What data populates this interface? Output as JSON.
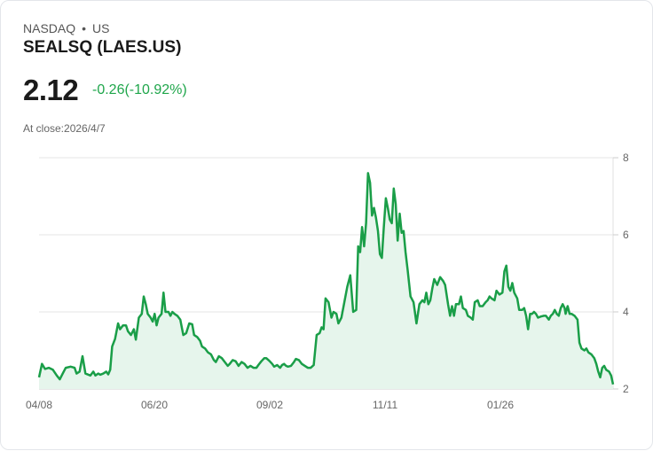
{
  "header": {
    "exchange": "NASDAQ",
    "separator": "•",
    "region": "US",
    "title": "SEALSQ (LAES.US)",
    "price": "2.12",
    "change": "-0.26(-10.92%)",
    "close_label": "At close:2026/4/7"
  },
  "colors": {
    "line": "#1a9e48",
    "fill": "#e6f5ec",
    "change": "#1fa64b"
  },
  "chart_data": {
    "type": "area",
    "title": "SEALSQ (LAES.US)",
    "xlabel": "",
    "ylabel": "",
    "ylim": [
      2,
      8
    ],
    "yticks": [
      2,
      4,
      6,
      8
    ],
    "xticks": [
      "04/08",
      "06/20",
      "09/02",
      "11/11",
      "01/26"
    ],
    "grid": true,
    "y_axis_position": "right",
    "points": [
      [
        0,
        2.3
      ],
      [
        3,
        2.65
      ],
      [
        6,
        2.52
      ],
      [
        10,
        2.55
      ],
      [
        14,
        2.5
      ],
      [
        18,
        2.35
      ],
      [
        21,
        2.25
      ],
      [
        24,
        2.4
      ],
      [
        27,
        2.55
      ],
      [
        32,
        2.58
      ],
      [
        36,
        2.55
      ],
      [
        38,
        2.4
      ],
      [
        41,
        2.45
      ],
      [
        44,
        2.85
      ],
      [
        47,
        2.4
      ],
      [
        52,
        2.35
      ],
      [
        55,
        2.45
      ],
      [
        57,
        2.35
      ],
      [
        60,
        2.4
      ],
      [
        62,
        2.37
      ],
      [
        65,
        2.4
      ],
      [
        68,
        2.45
      ],
      [
        70,
        2.38
      ],
      [
        72,
        2.5
      ],
      [
        74,
        3.1
      ],
      [
        77,
        3.3
      ],
      [
        80,
        3.7
      ],
      [
        82,
        3.55
      ],
      [
        85,
        3.65
      ],
      [
        88,
        3.65
      ],
      [
        90,
        3.5
      ],
      [
        93,
        3.4
      ],
      [
        96,
        3.55
      ],
      [
        98,
        3.28
      ],
      [
        101,
        3.85
      ],
      [
        104,
        3.95
      ],
      [
        106,
        4.4
      ],
      [
        108,
        4.2
      ],
      [
        110,
        3.95
      ],
      [
        113,
        3.85
      ],
      [
        115,
        3.75
      ],
      [
        117,
        3.95
      ],
      [
        119,
        3.65
      ],
      [
        121,
        3.85
      ],
      [
        124,
        3.95
      ],
      [
        126,
        4.5
      ],
      [
        128,
        4.0
      ],
      [
        131,
        4.0
      ],
      [
        133,
        3.9
      ],
      [
        135,
        4.0
      ],
      [
        137,
        3.95
      ],
      [
        140,
        3.9
      ],
      [
        143,
        3.8
      ],
      [
        146,
        3.4
      ],
      [
        149,
        3.45
      ],
      [
        152,
        3.7
      ],
      [
        155,
        3.68
      ],
      [
        157,
        3.4
      ],
      [
        160,
        3.35
      ],
      [
        163,
        3.25
      ],
      [
        165,
        3.1
      ],
      [
        168,
        3.05
      ],
      [
        171,
        2.95
      ],
      [
        174,
        2.9
      ],
      [
        177,
        2.75
      ],
      [
        179,
        2.7
      ],
      [
        182,
        2.85
      ],
      [
        185,
        2.8
      ],
      [
        188,
        2.7
      ],
      [
        191,
        2.6
      ],
      [
        193,
        2.65
      ],
      [
        196,
        2.75
      ],
      [
        199,
        2.72
      ],
      [
        202,
        2.6
      ],
      [
        205,
        2.7
      ],
      [
        208,
        2.65
      ],
      [
        211,
        2.55
      ],
      [
        214,
        2.6
      ],
      [
        217,
        2.55
      ],
      [
        220,
        2.55
      ],
      [
        222,
        2.62
      ],
      [
        225,
        2.72
      ],
      [
        228,
        2.8
      ],
      [
        230,
        2.8
      ],
      [
        233,
        2.73
      ],
      [
        236,
        2.65
      ],
      [
        238,
        2.58
      ],
      [
        241,
        2.62
      ],
      [
        244,
        2.55
      ],
      [
        246,
        2.62
      ],
      [
        248,
        2.65
      ],
      [
        250,
        2.6
      ],
      [
        252,
        2.58
      ],
      [
        255,
        2.6
      ],
      [
        258,
        2.7
      ],
      [
        260,
        2.78
      ],
      [
        263,
        2.75
      ],
      [
        266,
        2.65
      ],
      [
        269,
        2.6
      ],
      [
        272,
        2.55
      ],
      [
        275,
        2.55
      ],
      [
        278,
        2.62
      ],
      [
        281,
        3.4
      ],
      [
        284,
        3.45
      ],
      [
        286,
        3.6
      ],
      [
        288,
        3.55
      ],
      [
        290,
        4.35
      ],
      [
        293,
        4.25
      ],
      [
        296,
        3.85
      ],
      [
        298,
        4.0
      ],
      [
        301,
        3.95
      ],
      [
        303,
        3.7
      ],
      [
        306,
        3.85
      ],
      [
        309,
        4.25
      ],
      [
        312,
        4.65
      ],
      [
        315,
        4.95
      ],
      [
        318,
        4.0
      ],
      [
        321,
        4.05
      ],
      [
        323,
        5.7
      ],
      [
        325,
        5.55
      ],
      [
        327,
        6.2
      ],
      [
        329,
        5.7
      ],
      [
        331,
        6.3
      ],
      [
        333,
        7.6
      ],
      [
        335,
        7.35
      ],
      [
        337,
        6.5
      ],
      [
        339,
        6.7
      ],
      [
        341,
        6.45
      ],
      [
        343,
        6.1
      ],
      [
        345,
        5.5
      ],
      [
        347,
        5.4
      ],
      [
        349,
        6.2
      ],
      [
        351,
        6.95
      ],
      [
        353,
        6.7
      ],
      [
        355,
        6.4
      ],
      [
        357,
        6.3
      ],
      [
        359,
        7.2
      ],
      [
        361,
        6.8
      ],
      [
        363,
        5.85
      ],
      [
        365,
        6.55
      ],
      [
        367,
        6.05
      ],
      [
        369,
        6.1
      ],
      [
        371,
        5.55
      ],
      [
        373,
        5.1
      ],
      [
        376,
        4.4
      ],
      [
        379,
        4.25
      ],
      [
        382,
        3.7
      ],
      [
        385,
        4.2
      ],
      [
        388,
        4.3
      ],
      [
        390,
        4.25
      ],
      [
        392,
        4.5
      ],
      [
        394,
        4.2
      ],
      [
        396,
        4.3
      ],
      [
        398,
        4.6
      ],
      [
        400,
        4.85
      ],
      [
        403,
        4.7
      ],
      [
        406,
        4.9
      ],
      [
        409,
        4.8
      ],
      [
        411,
        4.7
      ],
      [
        414,
        4.2
      ],
      [
        416,
        3.9
      ],
      [
        418,
        4.15
      ],
      [
        420,
        3.9
      ],
      [
        422,
        4.2
      ],
      [
        425,
        4.2
      ],
      [
        427,
        4.4
      ],
      [
        429,
        4.1
      ],
      [
        432,
        4.05
      ],
      [
        434,
        3.9
      ],
      [
        437,
        3.85
      ],
      [
        439,
        3.8
      ],
      [
        441,
        4.25
      ],
      [
        444,
        4.3
      ],
      [
        446,
        4.15
      ],
      [
        449,
        4.15
      ],
      [
        452,
        4.25
      ],
      [
        454,
        4.3
      ],
      [
        456,
        4.4
      ],
      [
        458,
        4.35
      ],
      [
        461,
        4.3
      ],
      [
        463,
        4.55
      ],
      [
        466,
        4.45
      ],
      [
        469,
        4.5
      ],
      [
        471,
        5.05
      ],
      [
        473,
        5.2
      ],
      [
        475,
        4.65
      ],
      [
        477,
        4.55
      ],
      [
        479,
        4.75
      ],
      [
        481,
        4.5
      ],
      [
        484,
        4.35
      ],
      [
        486,
        4.05
      ],
      [
        489,
        4.05
      ],
      [
        491,
        4.1
      ],
      [
        493,
        3.9
      ],
      [
        495,
        3.55
      ],
      [
        497,
        3.95
      ],
      [
        499,
        3.95
      ],
      [
        501,
        4.0
      ],
      [
        503,
        3.95
      ],
      [
        505,
        3.85
      ],
      [
        508,
        3.88
      ],
      [
        511,
        3.9
      ],
      [
        513,
        3.9
      ],
      [
        516,
        3.8
      ],
      [
        518,
        3.9
      ],
      [
        520,
        3.95
      ],
      [
        522,
        4.05
      ],
      [
        524,
        3.95
      ],
      [
        526,
        3.9
      ],
      [
        528,
        4.1
      ],
      [
        530,
        4.2
      ],
      [
        532,
        4.1
      ],
      [
        533,
        3.95
      ],
      [
        535,
        4.15
      ],
      [
        537,
        3.95
      ],
      [
        539,
        3.95
      ],
      [
        542,
        3.9
      ],
      [
        545,
        3.8
      ],
      [
        547,
        3.2
      ],
      [
        549,
        3.05
      ],
      [
        552,
        3.0
      ],
      [
        554,
        3.05
      ],
      [
        556,
        2.95
      ],
      [
        559,
        2.9
      ],
      [
        562,
        2.8
      ],
      [
        564,
        2.65
      ],
      [
        566,
        2.45
      ],
      [
        568,
        2.3
      ],
      [
        570,
        2.55
      ],
      [
        572,
        2.6
      ],
      [
        574,
        2.5
      ],
      [
        577,
        2.45
      ],
      [
        579,
        2.35
      ],
      [
        581,
        2.12
      ]
    ],
    "points_note": "x = approximate trading-day index from 04/08 to 2026/4/7; y = close price"
  }
}
